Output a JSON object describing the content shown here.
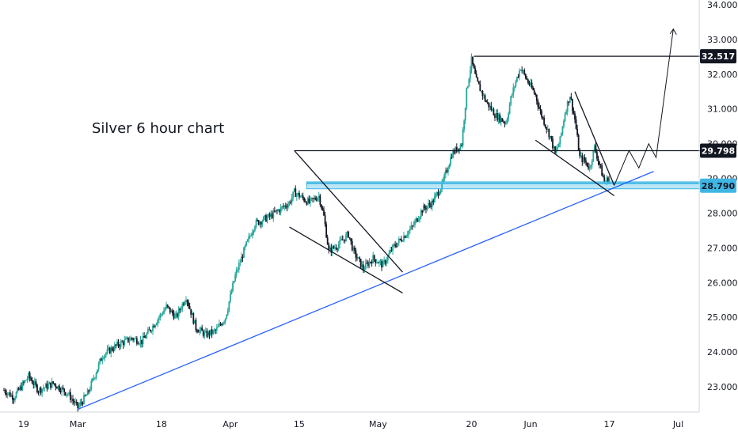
{
  "chart_data": {
    "type": "candlestick",
    "title": "Silver 6 hour chart",
    "ylim": [
      22.3,
      34.1
    ],
    "y_ticks": [
      "34.000",
      "33.000",
      "32.000",
      "31.000",
      "30.000",
      "29.000",
      "28.000",
      "27.000",
      "26.000",
      "25.000",
      "24.000",
      "23.000"
    ],
    "x_ticks": [
      {
        "label": "19",
        "d": -10
      },
      {
        "label": "Mar",
        "d": 1
      },
      {
        "label": "18",
        "d": 18
      },
      {
        "label": "Apr",
        "d": 32
      },
      {
        "label": "15",
        "d": 46
      },
      {
        "label": "May",
        "d": 62
      },
      {
        "label": "20",
        "d": 81
      },
      {
        "label": "Jun",
        "d": 93
      },
      {
        "label": "17",
        "d": 109
      },
      {
        "label": "Jul",
        "d": 123
      }
    ],
    "x_range": [
      -14,
      128
    ],
    "price_labels": [
      {
        "value": 32.517,
        "text": "32.517",
        "bg": "#131722",
        "fg": "#ffffff"
      },
      {
        "value": 29.798,
        "text": "29.798",
        "bg": "#131722",
        "fg": "#ffffff"
      },
      {
        "value": 28.79,
        "text": "28.790",
        "bg": "#3fb6e3",
        "fg": "#131722"
      }
    ],
    "anchors": [
      [
        -14,
        22.9
      ],
      [
        -12,
        22.7
      ],
      [
        -9,
        23.3
      ],
      [
        -7,
        22.9
      ],
      [
        -4,
        23.1
      ],
      [
        -1,
        22.8
      ],
      [
        1,
        22.4
      ],
      [
        3,
        22.8
      ],
      [
        6,
        23.9
      ],
      [
        9,
        24.2
      ],
      [
        12,
        24.4
      ],
      [
        14,
        24.3
      ],
      [
        17,
        24.9
      ],
      [
        19,
        25.3
      ],
      [
        21,
        25.0
      ],
      [
        23,
        25.6
      ],
      [
        25,
        24.7
      ],
      [
        27,
        24.5
      ],
      [
        29,
        24.6
      ],
      [
        31,
        25.0
      ],
      [
        33,
        26.2
      ],
      [
        35,
        27.0
      ],
      [
        37,
        27.7
      ],
      [
        40,
        27.9
      ],
      [
        42,
        28.1
      ],
      [
        44,
        28.3
      ],
      [
        45,
        28.6
      ],
      [
        46,
        28.5
      ],
      [
        48,
        28.3
      ],
      [
        50,
        28.5
      ],
      [
        51,
        27.9
      ],
      [
        52,
        26.9
      ],
      [
        54,
        27.1
      ],
      [
        56,
        27.4
      ],
      [
        57,
        26.9
      ],
      [
        59,
        26.4
      ],
      [
        61,
        26.7
      ],
      [
        63,
        26.5
      ],
      [
        65,
        27.0
      ],
      [
        67,
        27.3
      ],
      [
        69,
        27.6
      ],
      [
        71,
        28.1
      ],
      [
        73,
        28.3
      ],
      [
        75,
        28.8
      ],
      [
        77,
        29.7
      ],
      [
        79,
        30.0
      ],
      [
        80,
        31.5
      ],
      [
        81,
        32.4
      ],
      [
        82,
        31.8
      ],
      [
        84,
        31.2
      ],
      [
        86,
        30.8
      ],
      [
        88,
        30.6
      ],
      [
        89,
        31.3
      ],
      [
        90,
        31.8
      ],
      [
        91,
        32.2
      ],
      [
        92,
        31.9
      ],
      [
        94,
        31.4
      ],
      [
        95,
        30.9
      ],
      [
        97,
        30.2
      ],
      [
        98,
        29.7
      ],
      [
        99,
        30.1
      ],
      [
        100,
        30.9
      ],
      [
        101,
        31.4
      ],
      [
        102,
        30.7
      ],
      [
        103,
        29.6
      ],
      [
        104,
        29.5
      ],
      [
        105,
        29.3
      ],
      [
        106,
        29.9
      ],
      [
        107,
        29.4
      ],
      [
        108,
        28.9
      ],
      [
        109,
        29.0
      ]
    ],
    "annotations": {
      "hlines": [
        {
          "y": 32.517,
          "x1": 81.5,
          "x2": 128
        },
        {
          "y": 29.798,
          "x1": 45,
          "x2": 128
        }
      ],
      "zone": {
        "y1": 28.7,
        "y2": 28.9,
        "x1": 47.5,
        "x2": 128
      },
      "trendline": {
        "x1": 1,
        "y1": 22.35,
        "x2": 118,
        "y2": 29.2
      },
      "wedge1_upper": {
        "x1": 45,
        "y1": 29.8,
        "x2": 67,
        "y2": 26.3
      },
      "wedge1_lower": {
        "x1": 44,
        "y1": 27.6,
        "x2": 67,
        "y2": 25.7
      },
      "wedge2_upper": {
        "x1": 102,
        "y1": 31.5,
        "x2": 110,
        "y2": 28.8
      },
      "wedge2_lower": {
        "x1": 94,
        "y1": 30.1,
        "x2": 110,
        "y2": 28.5
      },
      "projection": [
        [
          110,
          28.8
        ],
        [
          113,
          29.8
        ],
        [
          115,
          29.3
        ],
        [
          117,
          30.0
        ],
        [
          118.5,
          29.6
        ],
        [
          122,
          33.3
        ]
      ]
    }
  }
}
